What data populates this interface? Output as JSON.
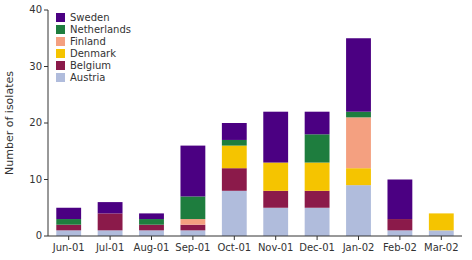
{
  "chart_data": {
    "type": "bar",
    "stacked": true,
    "ylabel": "Number of isolates",
    "categories": [
      "Jun-01",
      "Jul-01",
      "Aug-01",
      "Sep-01",
      "Oct-01",
      "Nov-01",
      "Dec-01",
      "Jan-02",
      "Feb-02",
      "Mar-02"
    ],
    "series": [
      {
        "name": "Austria",
        "color": "#b0bcdc",
        "values": [
          1,
          1,
          1,
          1,
          8,
          5,
          5,
          9,
          1,
          1
        ]
      },
      {
        "name": "Belgium",
        "color": "#8b1a4a",
        "values": [
          1,
          3,
          1,
          1,
          4,
          3,
          3,
          0,
          2,
          0
        ]
      },
      {
        "name": "Denmark",
        "color": "#f5c400",
        "values": [
          0,
          0,
          0,
          0,
          4,
          5,
          5,
          3,
          0,
          3
        ]
      },
      {
        "name": "Finland",
        "color": "#f4a080",
        "values": [
          0,
          0,
          0,
          1,
          0,
          0,
          0,
          9,
          0,
          0
        ]
      },
      {
        "name": "Netherlands",
        "color": "#1e7d3e",
        "values": [
          1,
          0,
          1,
          4,
          1,
          0,
          5,
          1,
          0,
          0
        ]
      },
      {
        "name": "Sweden",
        "color": "#4b0082",
        "values": [
          2,
          2,
          1,
          9,
          3,
          9,
          4,
          13,
          7,
          0
        ]
      }
    ],
    "ylim": [
      0,
      40
    ],
    "yticks": [
      0,
      10,
      20,
      30,
      40
    ],
    "grid": false,
    "legend": "upper left"
  }
}
